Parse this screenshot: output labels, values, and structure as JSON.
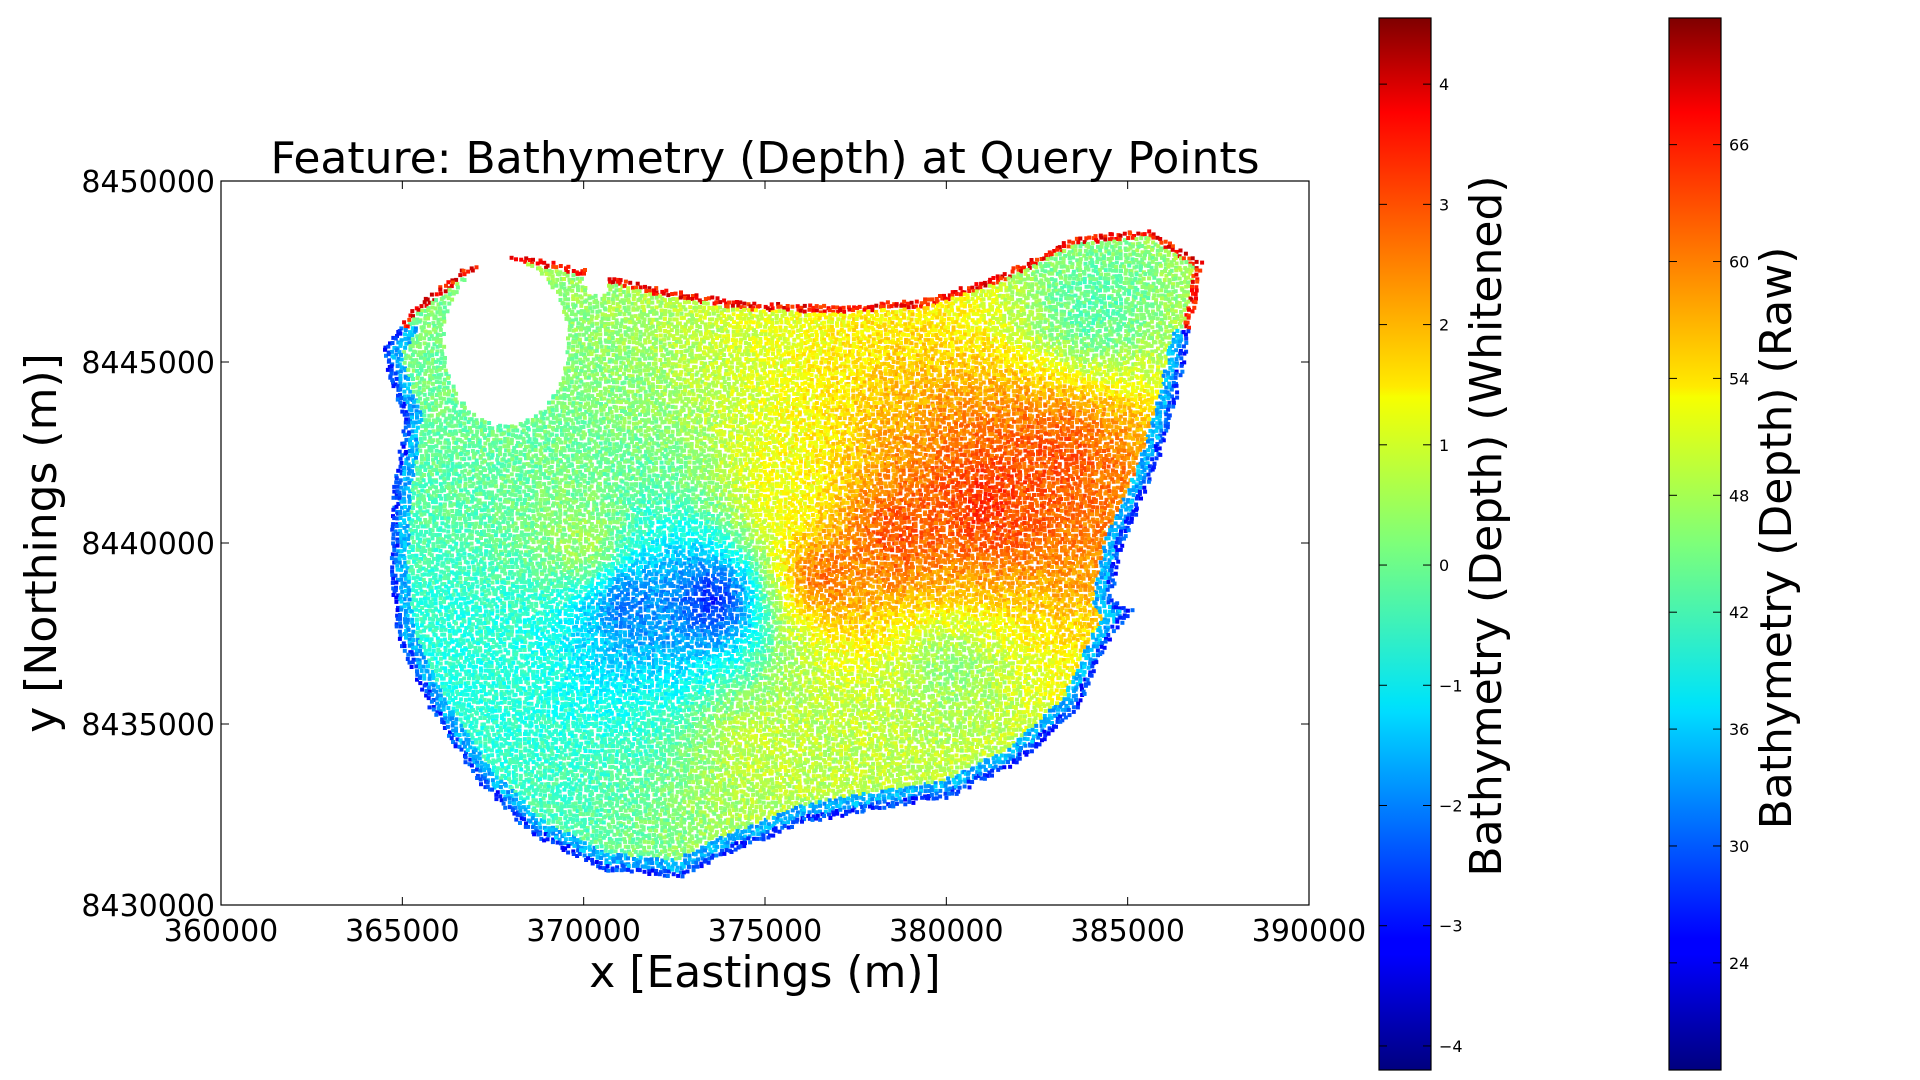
{
  "chart_data": [
    {
      "type": "scatter",
      "title": "Feature: Bathymetry (Depth) at Query Points",
      "xlabel": "x [Eastings (m)]",
      "ylabel": "y [Northings (m)]",
      "xlim": [
        360000,
        390000
      ],
      "ylim": [
        8430000,
        8450000
      ],
      "xticks": [
        360000,
        365000,
        370000,
        375000,
        380000,
        385000,
        390000
      ],
      "yticks": [
        8430000,
        8435000,
        8440000,
        8445000,
        8450000
      ],
      "xtick_labels": [
        "360000",
        "365000",
        "370000",
        "375000",
        "380000",
        "385000",
        "390000"
      ],
      "ytick_labels": [
        "8430000",
        "8435000",
        "8440000",
        "8445000",
        "8450000"
      ],
      "colormap": "jet",
      "grid": false,
      "region_outline": [
        [
          364400,
          8445400
        ],
        [
          365200,
          8446500
        ],
        [
          366600,
          8447600
        ],
        [
          368200,
          8448000
        ],
        [
          370000,
          8447600
        ],
        [
          372000,
          8447100
        ],
        [
          374400,
          8446700
        ],
        [
          377000,
          8446600
        ],
        [
          379500,
          8446800
        ],
        [
          381500,
          8447500
        ],
        [
          383500,
          8448500
        ],
        [
          385500,
          8448700
        ],
        [
          387000,
          8447800
        ],
        [
          386700,
          8446000
        ],
        [
          386300,
          8444000
        ],
        [
          385700,
          8442000
        ],
        [
          384800,
          8440000
        ],
        [
          384500,
          8438500
        ],
        [
          385100,
          8438200
        ],
        [
          384400,
          8437300
        ],
        [
          383600,
          8435500
        ],
        [
          382000,
          8434000
        ],
        [
          380000,
          8433000
        ],
        [
          378000,
          8432700
        ],
        [
          376000,
          8432300
        ],
        [
          374000,
          8431500
        ],
        [
          372600,
          8430800
        ],
        [
          370500,
          8431000
        ],
        [
          368500,
          8432000
        ],
        [
          367000,
          8433500
        ],
        [
          365700,
          8435500
        ],
        [
          364800,
          8437500
        ],
        [
          364600,
          8439200
        ],
        [
          364700,
          8441500
        ],
        [
          365000,
          8443500
        ],
        [
          364600,
          8444600
        ]
      ],
      "gaps": [
        {
          "x": 367800,
          "y": 8445600,
          "rx": 1700,
          "ry": 2300
        },
        {
          "x": 370300,
          "y": 8447300,
          "rx": 350,
          "ry": 400
        }
      ],
      "value_zones": [
        {
          "x": 370000,
          "y": 8440000,
          "value": 0.6
        },
        {
          "x": 375500,
          "y": 8441500,
          "value": 1.2
        },
        {
          "x": 378500,
          "y": 8440300,
          "value": 2.9
        },
        {
          "x": 381000,
          "y": 8441200,
          "value": 3.1
        },
        {
          "x": 376500,
          "y": 8439200,
          "value": 2.6
        },
        {
          "x": 383000,
          "y": 8442400,
          "value": 2.8
        },
        {
          "x": 366500,
          "y": 8436500,
          "value": -0.6
        },
        {
          "x": 375000,
          "y": 8434500,
          "value": 0.8
        },
        {
          "x": 380000,
          "y": 8436500,
          "value": 0.3
        },
        {
          "x": 384000,
          "y": 8446500,
          "value": -0.2
        },
        {
          "x": 373500,
          "y": 8438500,
          "value": -3.0
        },
        {
          "x": 371200,
          "y": 8438400,
          "value": -2.2
        }
      ],
      "edge_value_high": 4.0,
      "edge_value_low": -3.2
    },
    {
      "type": "colorbar",
      "name": "whitened",
      "label": "Bathymetry (Depth) (Whitened)",
      "colormap": "jet",
      "range": [
        -4.2,
        4.55
      ],
      "ticks": [
        -4,
        -3,
        -2,
        -1,
        0,
        1,
        2,
        3,
        4
      ],
      "tick_labels": [
        "−4",
        "−3",
        "−2",
        "−1",
        "0",
        "1",
        "2",
        "3",
        "4"
      ]
    },
    {
      "type": "colorbar",
      "name": "raw",
      "label": "Bathymetry (Depth) (Raw)",
      "colormap": "jet",
      "range": [
        18.5,
        72.5
      ],
      "ticks": [
        24,
        30,
        36,
        42,
        48,
        54,
        60,
        66
      ],
      "tick_labels": [
        "24",
        "30",
        "36",
        "42",
        "48",
        "54",
        "60",
        "66"
      ]
    }
  ]
}
